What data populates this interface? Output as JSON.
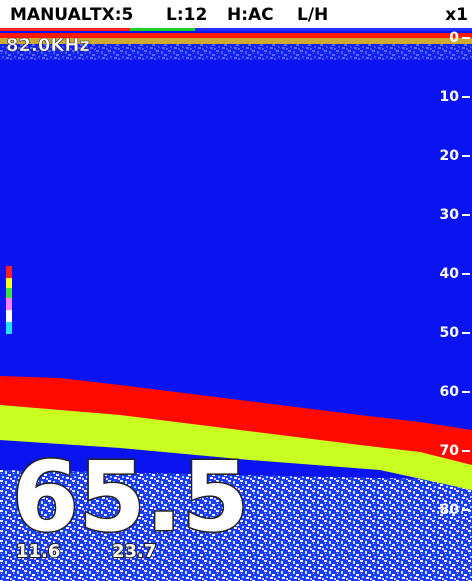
{
  "status_bar": {
    "mode": "MANUAL",
    "tx": "TX:5",
    "level": "L:12",
    "h": "H:AC",
    "freq_mode": "L/H",
    "zoom": "x1"
  },
  "frequency": "82.0KHz",
  "depth_scale": {
    "ticks": [
      0,
      10,
      20,
      30,
      40,
      50,
      60,
      70,
      80
    ]
  },
  "readouts": {
    "depth": "65.5",
    "value1": "11.6",
    "value2": "23.7"
  }
}
